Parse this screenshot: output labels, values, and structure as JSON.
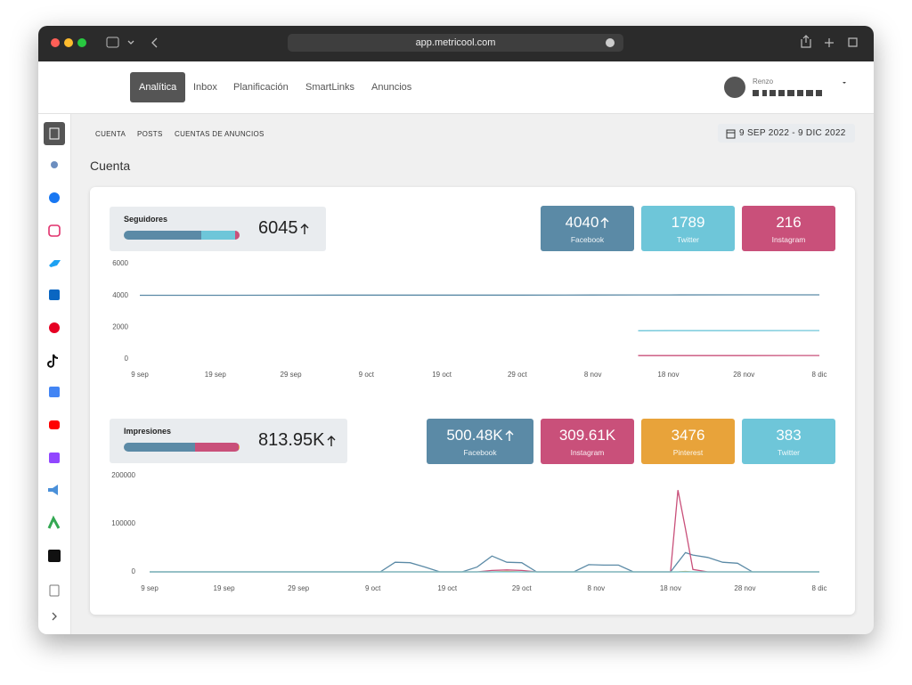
{
  "browser": {
    "url": "app.metricool.com"
  },
  "nav": {
    "items": [
      "Analítica",
      "Inbox",
      "Planificación",
      "SmartLinks",
      "Anuncios"
    ],
    "user": "Renzo"
  },
  "tabs": [
    "CUENTA",
    "POSTS",
    "CUENTAS DE ANUNCIOS"
  ],
  "date_range": "9 SEP 2022 - 9 DIC 2022",
  "section_title": "Cuenta",
  "chart_data": [
    {
      "type": "line",
      "title": "Seguidores",
      "total": 6045,
      "trend_up": true,
      "x": [
        0,
        10,
        20,
        30,
        40,
        50,
        60,
        66,
        70,
        80,
        90
      ],
      "xlim": [
        0,
        90
      ],
      "xticks": [
        {
          "value": 0,
          "label": "9 sep"
        },
        {
          "value": 10,
          "label": "19 sep"
        },
        {
          "value": 20,
          "label": "29 sep"
        },
        {
          "value": 30,
          "label": "9 oct"
        },
        {
          "value": 40,
          "label": "19 oct"
        },
        {
          "value": 50,
          "label": "29 oct"
        },
        {
          "value": 60,
          "label": "8 nov"
        },
        {
          "value": 70,
          "label": "18 nov"
        },
        {
          "value": 80,
          "label": "28 nov"
        },
        {
          "value": 90,
          "label": "8 dic"
        }
      ],
      "ylim": [
        0,
        6000
      ],
      "yticks": [
        0,
        2000,
        4000,
        6000
      ],
      "series": [
        {
          "name": "Facebook",
          "color": "#5b8aa6",
          "total": 4040,
          "trend_up": true,
          "values": [
            4010,
            4012,
            4015,
            4018,
            4020,
            4022,
            4025,
            4030,
            4033,
            4037,
            4040
          ]
        },
        {
          "name": "Twitter",
          "color": "#6ec6d9",
          "total": 1789,
          "values": [
            null,
            null,
            null,
            null,
            null,
            null,
            null,
            1780,
            1782,
            1785,
            1789
          ]
        },
        {
          "name": "Instagram",
          "color": "#c9507a",
          "total": 216,
          "values": [
            null,
            null,
            null,
            null,
            null,
            null,
            null,
            212,
            213,
            215,
            216
          ]
        }
      ]
    },
    {
      "type": "line",
      "title": "Impresiones",
      "total": 813950,
      "total_label": "813.95K",
      "trend_up": true,
      "x": [
        0,
        31,
        33,
        35,
        37,
        39,
        42,
        44,
        46,
        48,
        50,
        52,
        57,
        59,
        61,
        63,
        65,
        68,
        70,
        71,
        72,
        73,
        75,
        77,
        79,
        81,
        90
      ],
      "xlim": [
        0,
        90
      ],
      "xticks": [
        {
          "value": 0,
          "label": "9 sep"
        },
        {
          "value": 10,
          "label": "19 sep"
        },
        {
          "value": 20,
          "label": "29 sep"
        },
        {
          "value": 30,
          "label": "9 oct"
        },
        {
          "value": 40,
          "label": "19 oct"
        },
        {
          "value": 50,
          "label": "29 oct"
        },
        {
          "value": 60,
          "label": "8 nov"
        },
        {
          "value": 70,
          "label": "18 nov"
        },
        {
          "value": 80,
          "label": "28 nov"
        },
        {
          "value": 90,
          "label": "8 dic"
        }
      ],
      "ylim": [
        0,
        200000
      ],
      "yticks": [
        0,
        100000,
        200000
      ],
      "series": [
        {
          "name": "Facebook",
          "color": "#5b8aa6",
          "total": 500480,
          "total_label": "500.48K",
          "trend_up": true,
          "values": [
            0,
            0,
            20000,
            19000,
            10000,
            0,
            0,
            10000,
            33000,
            20000,
            19000,
            0,
            0,
            15000,
            14000,
            14000,
            0,
            0,
            0,
            20000,
            40000,
            35000,
            30000,
            20000,
            18000,
            0,
            0
          ]
        },
        {
          "name": "Instagram",
          "color": "#c9507a",
          "total": 309610,
          "total_label": "309.61K",
          "values": [
            0,
            0,
            0,
            0,
            0,
            0,
            0,
            0,
            3000,
            4000,
            3000,
            0,
            0,
            0,
            0,
            0,
            0,
            0,
            0,
            170000,
            90000,
            5000,
            0,
            0,
            0,
            0,
            0
          ]
        },
        {
          "name": "Pinterest",
          "color": "#e8a33a",
          "total": 3476,
          "values": [
            0,
            0,
            0,
            0,
            0,
            0,
            0,
            0,
            0,
            1000,
            0,
            0,
            0,
            0,
            0,
            0,
            0,
            0,
            0,
            0,
            1000,
            0,
            0,
            0,
            0,
            0,
            0
          ]
        },
        {
          "name": "Twitter",
          "color": "#6ec6d9",
          "total": 383,
          "values": [
            0,
            0,
            0,
            0,
            0,
            0,
            0,
            0,
            0,
            0,
            0,
            0,
            0,
            0,
            0,
            0,
            0,
            0,
            0,
            0,
            0,
            0,
            0,
            0,
            0,
            0,
            0
          ]
        }
      ]
    }
  ]
}
